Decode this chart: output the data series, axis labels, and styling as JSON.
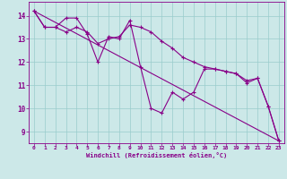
{
  "xlabel": "Windchill (Refroidissement éolien,°C)",
  "bg_color": "#cce8e8",
  "line_color": "#880088",
  "grid_color": "#99cccc",
  "xlim": [
    -0.5,
    23.5
  ],
  "ylim": [
    8.5,
    14.6
  ],
  "yticks": [
    9,
    10,
    11,
    12,
    13,
    14
  ],
  "xticks": [
    0,
    1,
    2,
    3,
    4,
    5,
    6,
    7,
    8,
    9,
    10,
    11,
    12,
    13,
    14,
    15,
    16,
    17,
    18,
    19,
    20,
    21,
    22,
    23
  ],
  "series1_x": [
    0,
    1,
    2,
    3,
    4,
    5,
    6,
    7,
    8,
    9,
    10,
    11,
    12,
    13,
    14,
    15,
    16,
    17,
    18,
    19,
    20,
    21,
    22,
    23
  ],
  "series1_y": [
    14.2,
    13.5,
    13.5,
    13.9,
    13.9,
    13.2,
    12.0,
    13.1,
    13.0,
    13.8,
    11.8,
    10.0,
    9.8,
    10.7,
    10.4,
    10.7,
    11.7,
    11.7,
    11.6,
    11.5,
    11.1,
    11.3,
    10.1,
    8.6
  ],
  "series2_x": [
    0,
    1,
    2,
    3,
    4,
    5,
    6,
    7,
    8,
    9,
    10,
    11,
    12,
    13,
    14,
    15,
    16,
    17,
    18,
    19,
    20,
    21,
    22,
    23
  ],
  "series2_y": [
    14.2,
    13.5,
    13.5,
    13.3,
    13.5,
    13.3,
    12.8,
    13.0,
    13.1,
    13.6,
    13.5,
    13.3,
    12.9,
    12.6,
    12.2,
    12.0,
    11.8,
    11.7,
    11.6,
    11.5,
    11.2,
    11.3,
    10.1,
    8.6
  ],
  "series3_x": [
    0,
    23
  ],
  "series3_y": [
    14.2,
    8.6
  ]
}
